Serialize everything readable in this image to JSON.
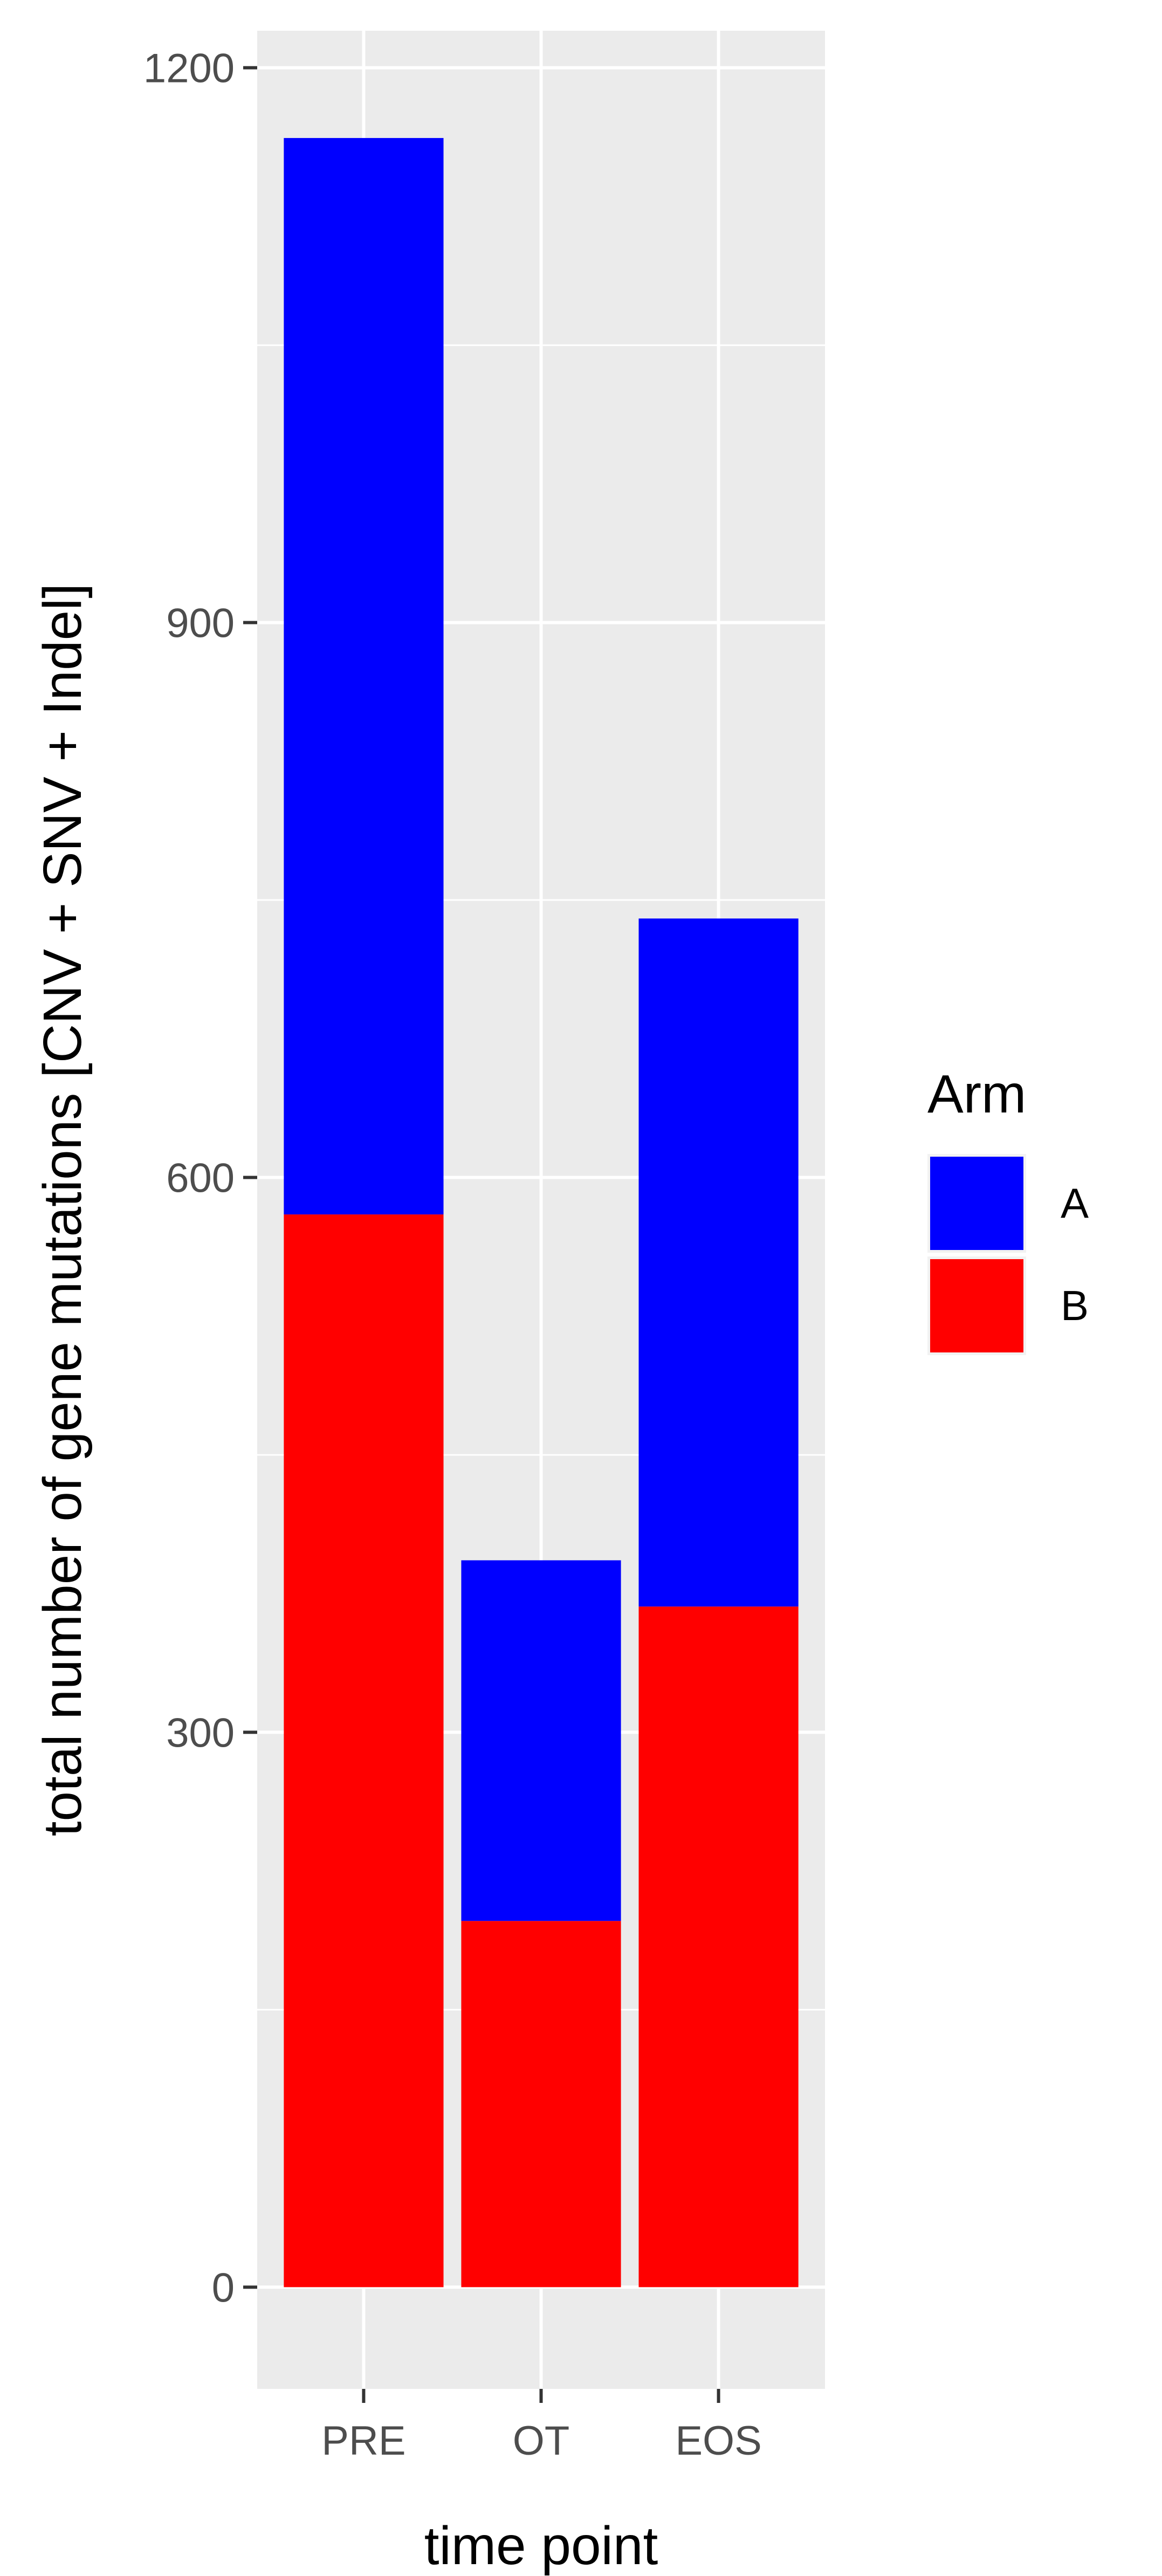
{
  "chart_data": {
    "type": "bar",
    "stacked": true,
    "categories": [
      "PRE",
      "OT",
      "EOS"
    ],
    "series": [
      {
        "name": "B",
        "values": [
          580,
          198,
          368
        ],
        "color": "#ff0000"
      },
      {
        "name": "A",
        "values": [
          582,
          195,
          372
        ],
        "color": "#0000ff"
      }
    ],
    "xlabel": "time point",
    "ylabel": "total number of gene mutations [CNV + SNV + Indel]",
    "ylim": [
      -55,
      1220
    ],
    "yticks": [
      0,
      300,
      600,
      900,
      1200
    ],
    "ytick_labels": [
      "0",
      "300",
      "600",
      "900",
      "1200"
    ],
    "grid": true,
    "panel_background": "#ebebeb",
    "legend": {
      "title": "Arm",
      "placement": "right",
      "entries": [
        {
          "label": "A",
          "color": "#0000ff"
        },
        {
          "label": "B",
          "color": "#ff0000"
        }
      ]
    }
  }
}
